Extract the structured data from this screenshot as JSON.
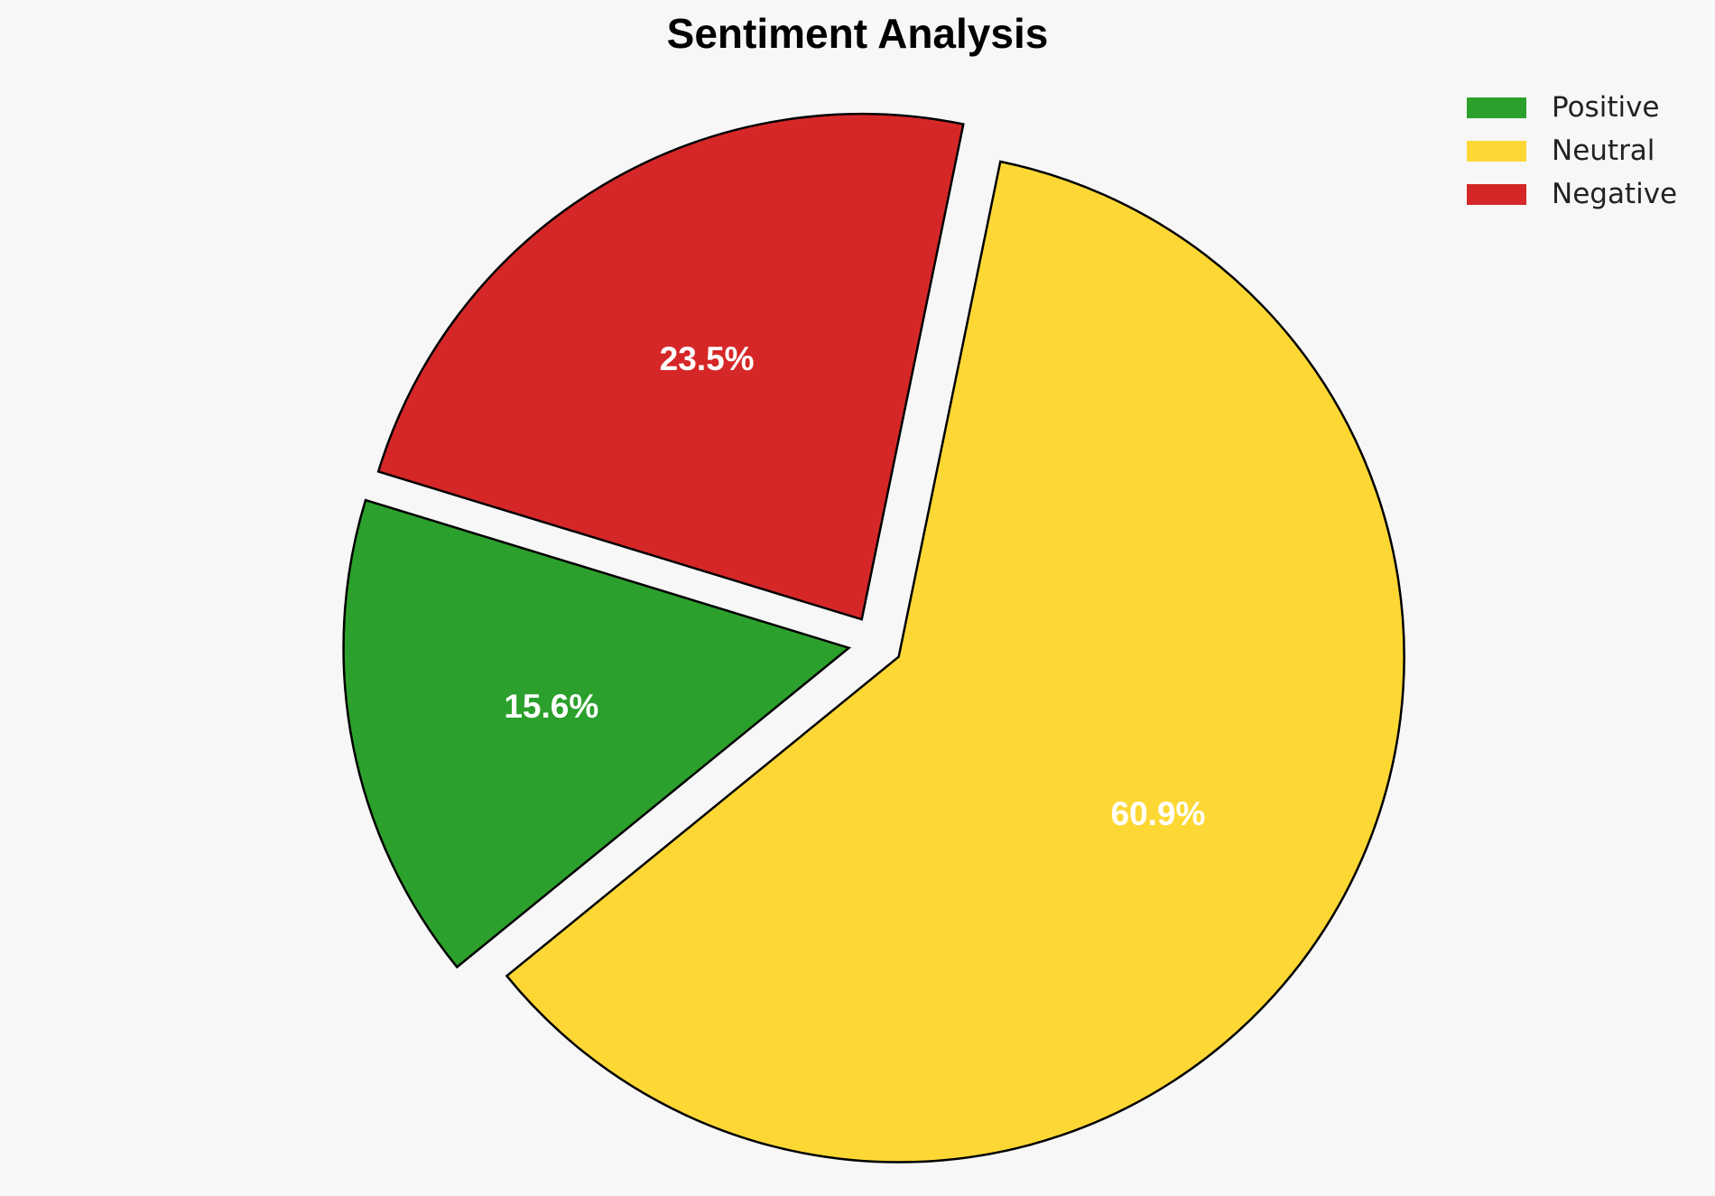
{
  "chart_data": {
    "type": "pie",
    "title": "Sentiment Analysis",
    "categories": [
      "Positive",
      "Neutral",
      "Negative"
    ],
    "values": [
      15.6,
      60.9,
      23.5
    ],
    "labels": [
      "15.6%",
      "60.9%",
      "23.5%"
    ],
    "colors": [
      "#2ca02c",
      "#fdd835",
      "#d62728"
    ],
    "exploded": true,
    "legend_position": "top-right"
  }
}
